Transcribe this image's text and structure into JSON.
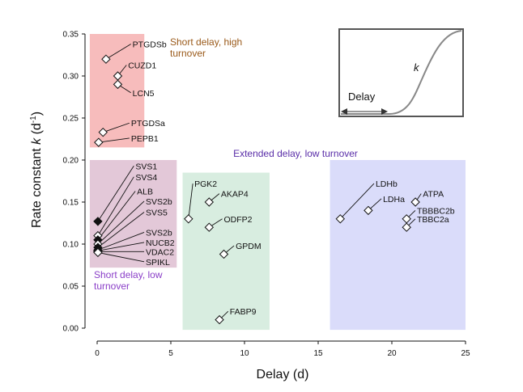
{
  "chart_data": {
    "type": "scatter",
    "xlabel": "Delay (d)",
    "ylabel_main": "Rate constant ",
    "ylabel_k": "k",
    "ylabel_unit_open": " (d",
    "ylabel_unit_exp": "-1",
    "ylabel_unit_close": ")",
    "xlim": [
      -0.5,
      25
    ],
    "ylim": [
      0.0,
      0.35
    ],
    "xticks": [
      0,
      5,
      10,
      15,
      20,
      25
    ],
    "xtick_labels": [
      "0",
      "5",
      "10",
      "15",
      "20",
      "25"
    ],
    "yticks": [
      0.0,
      0.05,
      0.1,
      0.15,
      0.2,
      0.25,
      0.3,
      0.35
    ],
    "ytick_labels": [
      "0.00",
      "0.05",
      "0.10",
      "0.15",
      "0.20",
      "0.25",
      "0.30",
      "0.35"
    ],
    "regions": [
      {
        "name": "short-delay-high-turnover",
        "x": [
          -0.5,
          3.2
        ],
        "y": [
          0.215,
          0.35
        ],
        "color": "#f7bcbc",
        "label_lines": [
          "Short delay, high",
          "turnover"
        ],
        "label_color": "#9a5a1a"
      },
      {
        "name": "short-delay-low-turnover",
        "x": [
          -0.5,
          5.4
        ],
        "y": [
          0.072,
          0.2
        ],
        "color": "#e3c8d8",
        "label_lines": [
          "Short delay, low",
          "turnover"
        ],
        "label_color": "#8a3ec8"
      },
      {
        "name": "extended-delay-middle",
        "x": [
          5.8,
          11.7
        ],
        "y": [
          -0.002,
          0.185
        ],
        "color": "#d8ede0"
      },
      {
        "name": "extended-delay-right",
        "x": [
          15.8,
          25.0
        ],
        "y": [
          -0.002,
          0.2
        ],
        "color": "#dadcfa"
      }
    ],
    "extended_label": "Extended delay, low turnover",
    "extended_label_color": "#5a2ea8",
    "points": [
      {
        "label": "PTGDSb",
        "x": 0.6,
        "y": 0.32,
        "filled": false,
        "lx": 2.4,
        "ly": 0.338
      },
      {
        "label": "CUZD1",
        "x": 1.4,
        "y": 0.3,
        "filled": false,
        "lx": 2.1,
        "ly": 0.313
      },
      {
        "label": "LCN5",
        "x": 1.4,
        "y": 0.29,
        "filled": false,
        "lx": 2.4,
        "ly": 0.28
      },
      {
        "label": "PTGDSa",
        "x": 0.4,
        "y": 0.233,
        "filled": false,
        "lx": 2.3,
        "ly": 0.244
      },
      {
        "label": "PEPB1",
        "x": 0.1,
        "y": 0.221,
        "filled": false,
        "lx": 2.3,
        "ly": 0.226
      },
      {
        "label": "SVS1",
        "x": 0.05,
        "y": 0.127,
        "filled": true,
        "lx": 2.6,
        "ly": 0.193
      },
      {
        "label": "SVS4",
        "x": 0.05,
        "y": 0.11,
        "filled": false,
        "lx": 2.6,
        "ly": 0.18
      },
      {
        "label": "ALB",
        "x": 0.05,
        "y": 0.105,
        "filled": true,
        "lx": 2.7,
        "ly": 0.163
      },
      {
        "label": "SVS2b",
        "x": 0.05,
        "y": 0.1,
        "filled": false,
        "lx": 3.3,
        "ly": 0.151
      },
      {
        "label": "SVS5",
        "x": 0.05,
        "y": 0.096,
        "filled": true,
        "lx": 3.3,
        "ly": 0.138
      },
      {
        "label": "SVS2b",
        "x": 0.05,
        "y": 0.093,
        "filled": true,
        "lx": 3.3,
        "ly": 0.114
      },
      {
        "label": "NUCB2",
        "x": 0.05,
        "y": 0.092,
        "filled": false,
        "lx": 3.3,
        "ly": 0.102
      },
      {
        "label": "VDAC2",
        "x": 0.05,
        "y": 0.091,
        "filled": false,
        "lx": 3.3,
        "ly": 0.091
      },
      {
        "label": "SPIKL",
        "x": 0.05,
        "y": 0.09,
        "filled": false,
        "lx": 3.3,
        "ly": 0.079
      },
      {
        "label": "PGK2",
        "x": 6.2,
        "y": 0.13,
        "filled": false,
        "lx": 6.6,
        "ly": 0.172
      },
      {
        "label": "AKAP4",
        "x": 7.6,
        "y": 0.15,
        "filled": false,
        "lx": 8.4,
        "ly": 0.16
      },
      {
        "label": "ODFP2",
        "x": 7.6,
        "y": 0.12,
        "filled": false,
        "lx": 8.6,
        "ly": 0.13
      },
      {
        "label": "GPDM",
        "x": 8.6,
        "y": 0.088,
        "filled": false,
        "lx": 9.4,
        "ly": 0.098
      },
      {
        "label": "FABP9",
        "x": 8.3,
        "y": 0.01,
        "filled": false,
        "lx": 9.0,
        "ly": 0.02
      },
      {
        "label": "LDHb",
        "x": 16.5,
        "y": 0.13,
        "filled": false,
        "lx": 18.9,
        "ly": 0.172
      },
      {
        "label": "LDHa",
        "x": 18.4,
        "y": 0.14,
        "filled": false,
        "lx": 19.4,
        "ly": 0.154
      },
      {
        "label": "ATPA",
        "x": 21.6,
        "y": 0.15,
        "filled": false,
        "lx": 22.1,
        "ly": 0.16
      },
      {
        "label": "TBBBC2b",
        "x": 21.0,
        "y": 0.13,
        "filled": false,
        "lx": 21.7,
        "ly": 0.14
      },
      {
        "label": "TBBC2a",
        "x": 21.0,
        "y": 0.12,
        "filled": false,
        "lx": 21.7,
        "ly": 0.13
      }
    ],
    "inset": {
      "delay_label": "Delay",
      "k_label": "k"
    }
  }
}
